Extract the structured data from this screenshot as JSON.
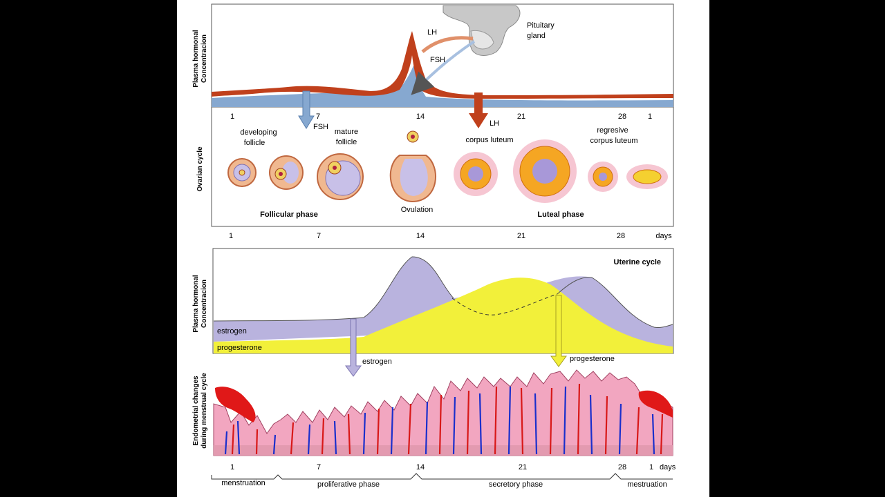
{
  "top_panel": {
    "y_label_line1": "Plasma hormonal",
    "y_label_line2": "Concentracion",
    "pituitary_line1": "Pituitary",
    "pituitary_line2": "gland",
    "lh": "LH",
    "fsh": "FSH",
    "ticks": [
      "1",
      "7",
      "14",
      "21",
      "28",
      "1"
    ]
  },
  "ovarian_panel": {
    "y_label": "Ovarian cycle",
    "fsh": "FSH",
    "lh": "LH",
    "developing_line1": "developing",
    "developing_line2": "follicle",
    "mature_line1": "mature",
    "mature_line2": "follicle",
    "corpus_luteum": "corpus luteum",
    "regresive_line1": "regresive",
    "regresive_line2": "corpus luteum",
    "follicular_phase": "Follicular phase",
    "ovulation": "Ovulation",
    "luteal_phase": "Luteal phase",
    "ticks": [
      "1",
      "7",
      "14",
      "21",
      "28"
    ],
    "days": "days"
  },
  "uterine_panel": {
    "title": "Uterine cycle",
    "y_label_line1": "Plasma hormonal",
    "y_label_line2": "Concentracion",
    "estrogen": "estrogen",
    "progesterone": "progesterone",
    "estrogen_arrow": "estrogen",
    "progesterone_arrow": "progesterone"
  },
  "endometrial_panel": {
    "y_label_line1": "Endometrial changes",
    "y_label_line2": "during menstrual cycle",
    "ticks": [
      "1",
      "7",
      "14",
      "21",
      "28",
      "1"
    ],
    "days": "days",
    "phases": [
      "menstruation",
      "proliferative phase",
      "secretory phase",
      "mestruation"
    ]
  },
  "colors": {
    "lh": "#c0401c",
    "fsh": "#86a8d0",
    "estrogen": "#b9b3de",
    "progesterone": "#f2f03a",
    "endometrium": "#f2a6c0",
    "artery": "#d81818",
    "vein": "#1a2fcc"
  }
}
